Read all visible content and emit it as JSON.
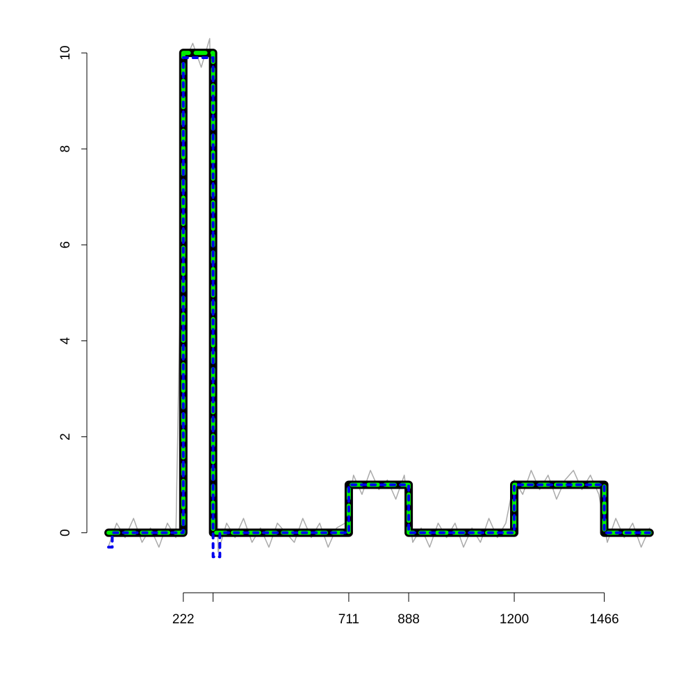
{
  "chart_data": {
    "type": "line",
    "xlim": [
      -63,
      1664
    ],
    "ylim": [
      -1.25,
      10.9
    ],
    "xticks": [
      222,
      {
        "value": 310,
        "label": null
      },
      711,
      888,
      1200,
      1466
    ],
    "yticks": [
      0,
      2,
      4,
      6,
      8,
      10
    ],
    "series": [
      {
        "color": "#aaaaaa",
        "width": 1.5,
        "x": [
          0,
          25,
          50,
          75,
          100,
          125,
          150,
          175,
          200,
          225,
          250,
          275,
          300,
          325,
          350,
          375,
          400,
          425,
          450,
          475,
          500,
          525,
          550,
          575,
          600,
          625,
          650,
          675,
          700,
          725,
          750,
          775,
          800,
          825,
          850,
          875,
          900,
          925,
          950,
          975,
          1000,
          1025,
          1050,
          1075,
          1100,
          1125,
          1150,
          1175,
          1200,
          1225,
          1250,
          1275,
          1300,
          1325,
          1350,
          1375,
          1400,
          1425,
          1450,
          1475,
          1500,
          1525,
          1550,
          1575,
          1600
        ],
        "values": [
          -0.3,
          0.2,
          -0.1,
          0.3,
          -0.2,
          0.1,
          -0.3,
          0.2,
          -0.1,
          9.8,
          10.2,
          9.7,
          10.3,
          -0.4,
          0.2,
          -0.1,
          0.3,
          -0.2,
          0.1,
          -0.3,
          0.2,
          0.0,
          -0.2,
          0.3,
          -0.1,
          0.2,
          -0.3,
          0.1,
          0.2,
          1.2,
          0.8,
          1.3,
          0.9,
          1.1,
          0.7,
          1.2,
          -0.2,
          0.1,
          -0.3,
          0.2,
          -0.1,
          0.2,
          -0.3,
          0.1,
          -0.2,
          0.3,
          -0.1,
          0.2,
          1.1,
          0.8,
          1.3,
          0.9,
          1.2,
          0.7,
          1.1,
          1.3,
          0.9,
          1.2,
          0.8,
          -0.2,
          0.3,
          -0.1,
          0.2,
          -0.3,
          0.1
        ]
      },
      {
        "color": "#000000",
        "width": 12,
        "x": [
          1,
          222,
          222,
          310,
          310,
          711,
          711,
          888,
          888,
          1200,
          1200,
          1466,
          1466,
          1600
        ],
        "values": [
          0,
          0,
          10,
          10,
          0,
          0,
          1,
          1,
          0,
          0,
          1,
          1,
          0,
          0
        ]
      },
      {
        "color": "#00ee00",
        "width": 6,
        "dash": [
          14,
          10
        ],
        "x": [
          1,
          222,
          222,
          310,
          310,
          711,
          711,
          888,
          888,
          1200,
          1200,
          1466,
          1466,
          1600
        ],
        "values": [
          0,
          0,
          10,
          10,
          0,
          0,
          1,
          1,
          0,
          0,
          1,
          1,
          0,
          0
        ]
      },
      {
        "color": "#0000ee",
        "width": 4,
        "dash": [
          6,
          8
        ],
        "x": [
          1,
          12,
          12,
          30,
          30,
          222,
          222,
          310,
          310,
          330,
          330,
          711,
          711,
          888,
          888,
          1200,
          1200,
          1466,
          1466,
          1600
        ],
        "values": [
          -0.3,
          -0.3,
          0,
          0,
          0,
          0,
          9.9,
          9.9,
          -0.5,
          -0.5,
          0,
          0,
          1,
          1,
          0,
          0,
          1,
          1,
          0,
          0
        ]
      }
    ]
  }
}
